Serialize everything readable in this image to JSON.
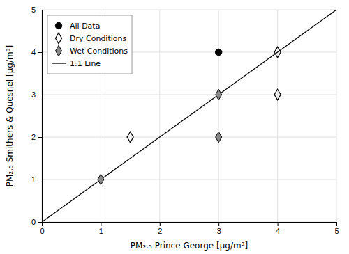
{
  "chart_data": {
    "type": "scatter",
    "xlabel": "PM₂.₅ Prince George [μg/m³]",
    "ylabel": "PM₂.₅ Smithers & Quesnel [μg/m³]",
    "xlim": [
      0,
      5
    ],
    "ylim": [
      0,
      5
    ],
    "xticks": [
      0,
      1,
      2,
      3,
      4,
      5
    ],
    "yticks": [
      0,
      1,
      2,
      3,
      4,
      5
    ],
    "grid": true,
    "legend": "upper-left",
    "series": [
      {
        "name": "All Data",
        "type": "scatter",
        "marker": "circle",
        "color": "#000000",
        "x": [
          3
        ],
        "values": [
          4
        ]
      },
      {
        "name": "Dry Conditions",
        "type": "scatter",
        "marker": "open-diamond",
        "color": "#000000",
        "x": [
          1.5,
          4,
          4
        ],
        "values": [
          2,
          4,
          3
        ]
      },
      {
        "name": "Wet Conditions",
        "type": "scatter",
        "marker": "diamond",
        "color": "#888888",
        "x": [
          1,
          3,
          3
        ],
        "values": [
          1,
          3,
          2
        ]
      },
      {
        "name": "1:1 Line",
        "type": "line",
        "color": "#000000",
        "x": [
          0,
          5
        ],
        "values": [
          0,
          5
        ]
      }
    ]
  }
}
